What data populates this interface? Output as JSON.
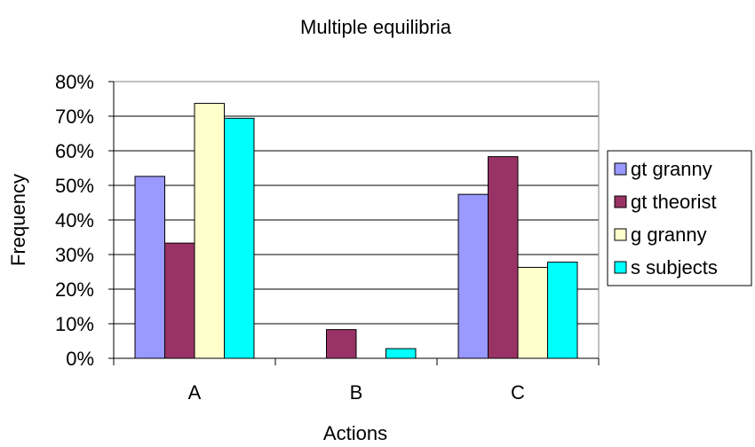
{
  "chart_data": {
    "type": "bar",
    "title": "Multiple equilibria",
    "xlabel": "Actions",
    "ylabel": "Frequency",
    "categories": [
      "A",
      "B",
      "C"
    ],
    "ylim": [
      0,
      80
    ],
    "yticks": [
      0,
      10,
      20,
      30,
      40,
      50,
      60,
      70,
      80
    ],
    "ytick_labels": [
      "0%",
      "10%",
      "20%",
      "30%",
      "40%",
      "50%",
      "60%",
      "70%",
      "80%"
    ],
    "grid": "horizontal major gridlines",
    "legend_position": "right",
    "series": [
      {
        "name": "gt granny",
        "color": "#9999FF",
        "values": [
          52.6,
          0,
          47.4
        ]
      },
      {
        "name": "gt theorist",
        "color": "#993366",
        "values": [
          33.3,
          8.3,
          58.3
        ]
      },
      {
        "name": "g granny",
        "color": "#FFFFCC",
        "values": [
          73.7,
          0,
          26.3
        ]
      },
      {
        "name": "s subjects",
        "color": "#00FFFF",
        "values": [
          69.4,
          2.8,
          27.8
        ]
      }
    ]
  }
}
